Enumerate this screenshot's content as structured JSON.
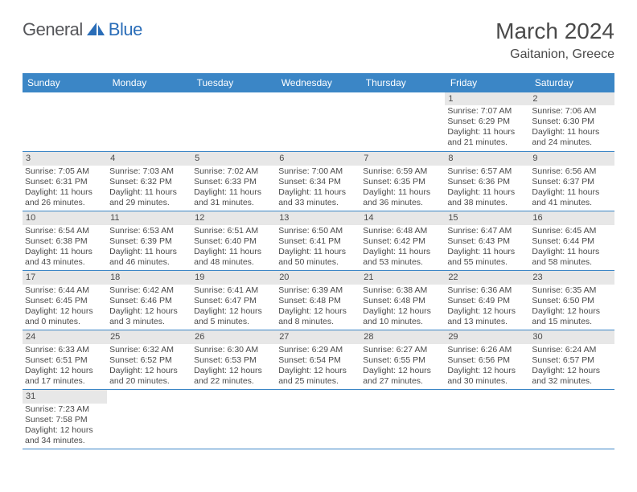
{
  "logo": {
    "text1": "General",
    "text2": "Blue"
  },
  "title": "March 2024",
  "location": "Gaitanion, Greece",
  "colors": {
    "header_bg": "#3b86c6",
    "header_text": "#ffffff",
    "daynum_bg": "#e7e7e7",
    "text": "#4a4a4a",
    "border": "#3b86c6",
    "logo_gray": "#55565a",
    "logo_blue": "#2a6db8"
  },
  "day_headers": [
    "Sunday",
    "Monday",
    "Tuesday",
    "Wednesday",
    "Thursday",
    "Friday",
    "Saturday"
  ],
  "weeks": [
    [
      null,
      null,
      null,
      null,
      null,
      {
        "n": "1",
        "sr": "Sunrise: 7:07 AM",
        "ss": "Sunset: 6:29 PM",
        "dl1": "Daylight: 11 hours",
        "dl2": "and 21 minutes."
      },
      {
        "n": "2",
        "sr": "Sunrise: 7:06 AM",
        "ss": "Sunset: 6:30 PM",
        "dl1": "Daylight: 11 hours",
        "dl2": "and 24 minutes."
      }
    ],
    [
      {
        "n": "3",
        "sr": "Sunrise: 7:05 AM",
        "ss": "Sunset: 6:31 PM",
        "dl1": "Daylight: 11 hours",
        "dl2": "and 26 minutes."
      },
      {
        "n": "4",
        "sr": "Sunrise: 7:03 AM",
        "ss": "Sunset: 6:32 PM",
        "dl1": "Daylight: 11 hours",
        "dl2": "and 29 minutes."
      },
      {
        "n": "5",
        "sr": "Sunrise: 7:02 AM",
        "ss": "Sunset: 6:33 PM",
        "dl1": "Daylight: 11 hours",
        "dl2": "and 31 minutes."
      },
      {
        "n": "6",
        "sr": "Sunrise: 7:00 AM",
        "ss": "Sunset: 6:34 PM",
        "dl1": "Daylight: 11 hours",
        "dl2": "and 33 minutes."
      },
      {
        "n": "7",
        "sr": "Sunrise: 6:59 AM",
        "ss": "Sunset: 6:35 PM",
        "dl1": "Daylight: 11 hours",
        "dl2": "and 36 minutes."
      },
      {
        "n": "8",
        "sr": "Sunrise: 6:57 AM",
        "ss": "Sunset: 6:36 PM",
        "dl1": "Daylight: 11 hours",
        "dl2": "and 38 minutes."
      },
      {
        "n": "9",
        "sr": "Sunrise: 6:56 AM",
        "ss": "Sunset: 6:37 PM",
        "dl1": "Daylight: 11 hours",
        "dl2": "and 41 minutes."
      }
    ],
    [
      {
        "n": "10",
        "sr": "Sunrise: 6:54 AM",
        "ss": "Sunset: 6:38 PM",
        "dl1": "Daylight: 11 hours",
        "dl2": "and 43 minutes."
      },
      {
        "n": "11",
        "sr": "Sunrise: 6:53 AM",
        "ss": "Sunset: 6:39 PM",
        "dl1": "Daylight: 11 hours",
        "dl2": "and 46 minutes."
      },
      {
        "n": "12",
        "sr": "Sunrise: 6:51 AM",
        "ss": "Sunset: 6:40 PM",
        "dl1": "Daylight: 11 hours",
        "dl2": "and 48 minutes."
      },
      {
        "n": "13",
        "sr": "Sunrise: 6:50 AM",
        "ss": "Sunset: 6:41 PM",
        "dl1": "Daylight: 11 hours",
        "dl2": "and 50 minutes."
      },
      {
        "n": "14",
        "sr": "Sunrise: 6:48 AM",
        "ss": "Sunset: 6:42 PM",
        "dl1": "Daylight: 11 hours",
        "dl2": "and 53 minutes."
      },
      {
        "n": "15",
        "sr": "Sunrise: 6:47 AM",
        "ss": "Sunset: 6:43 PM",
        "dl1": "Daylight: 11 hours",
        "dl2": "and 55 minutes."
      },
      {
        "n": "16",
        "sr": "Sunrise: 6:45 AM",
        "ss": "Sunset: 6:44 PM",
        "dl1": "Daylight: 11 hours",
        "dl2": "and 58 minutes."
      }
    ],
    [
      {
        "n": "17",
        "sr": "Sunrise: 6:44 AM",
        "ss": "Sunset: 6:45 PM",
        "dl1": "Daylight: 12 hours",
        "dl2": "and 0 minutes."
      },
      {
        "n": "18",
        "sr": "Sunrise: 6:42 AM",
        "ss": "Sunset: 6:46 PM",
        "dl1": "Daylight: 12 hours",
        "dl2": "and 3 minutes."
      },
      {
        "n": "19",
        "sr": "Sunrise: 6:41 AM",
        "ss": "Sunset: 6:47 PM",
        "dl1": "Daylight: 12 hours",
        "dl2": "and 5 minutes."
      },
      {
        "n": "20",
        "sr": "Sunrise: 6:39 AM",
        "ss": "Sunset: 6:48 PM",
        "dl1": "Daylight: 12 hours",
        "dl2": "and 8 minutes."
      },
      {
        "n": "21",
        "sr": "Sunrise: 6:38 AM",
        "ss": "Sunset: 6:48 PM",
        "dl1": "Daylight: 12 hours",
        "dl2": "and 10 minutes."
      },
      {
        "n": "22",
        "sr": "Sunrise: 6:36 AM",
        "ss": "Sunset: 6:49 PM",
        "dl1": "Daylight: 12 hours",
        "dl2": "and 13 minutes."
      },
      {
        "n": "23",
        "sr": "Sunrise: 6:35 AM",
        "ss": "Sunset: 6:50 PM",
        "dl1": "Daylight: 12 hours",
        "dl2": "and 15 minutes."
      }
    ],
    [
      {
        "n": "24",
        "sr": "Sunrise: 6:33 AM",
        "ss": "Sunset: 6:51 PM",
        "dl1": "Daylight: 12 hours",
        "dl2": "and 17 minutes."
      },
      {
        "n": "25",
        "sr": "Sunrise: 6:32 AM",
        "ss": "Sunset: 6:52 PM",
        "dl1": "Daylight: 12 hours",
        "dl2": "and 20 minutes."
      },
      {
        "n": "26",
        "sr": "Sunrise: 6:30 AM",
        "ss": "Sunset: 6:53 PM",
        "dl1": "Daylight: 12 hours",
        "dl2": "and 22 minutes."
      },
      {
        "n": "27",
        "sr": "Sunrise: 6:29 AM",
        "ss": "Sunset: 6:54 PM",
        "dl1": "Daylight: 12 hours",
        "dl2": "and 25 minutes."
      },
      {
        "n": "28",
        "sr": "Sunrise: 6:27 AM",
        "ss": "Sunset: 6:55 PM",
        "dl1": "Daylight: 12 hours",
        "dl2": "and 27 minutes."
      },
      {
        "n": "29",
        "sr": "Sunrise: 6:26 AM",
        "ss": "Sunset: 6:56 PM",
        "dl1": "Daylight: 12 hours",
        "dl2": "and 30 minutes."
      },
      {
        "n": "30",
        "sr": "Sunrise: 6:24 AM",
        "ss": "Sunset: 6:57 PM",
        "dl1": "Daylight: 12 hours",
        "dl2": "and 32 minutes."
      }
    ],
    [
      {
        "n": "31",
        "sr": "Sunrise: 7:23 AM",
        "ss": "Sunset: 7:58 PM",
        "dl1": "Daylight: 12 hours",
        "dl2": "and 34 minutes."
      },
      null,
      null,
      null,
      null,
      null,
      null
    ]
  ]
}
